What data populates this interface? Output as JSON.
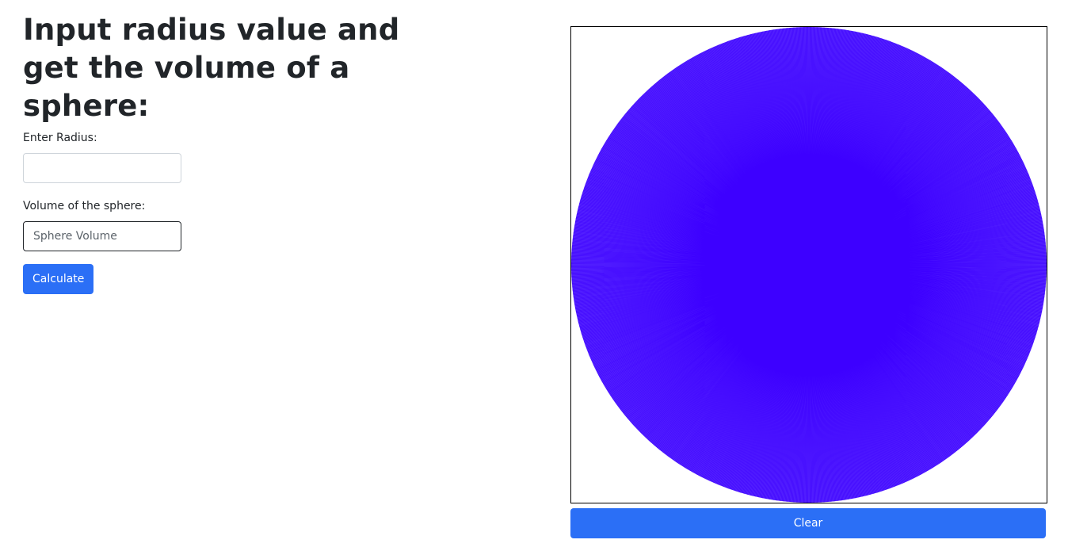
{
  "heading": "Input radius value and get the volume of a sphere:",
  "radius": {
    "label": "Enter Radius:",
    "value": "",
    "placeholder": ""
  },
  "volume": {
    "label": "Volume of the sphere:",
    "value": "",
    "placeholder": "Sphere Volume"
  },
  "buttons": {
    "calculate": "Calculate",
    "clear": "Clear"
  },
  "canvas": {
    "fill_color": "#5b2cff",
    "line_color": "#3d00ff",
    "background": "#ffffff"
  },
  "colors": {
    "accent": "#2b6ff6"
  }
}
